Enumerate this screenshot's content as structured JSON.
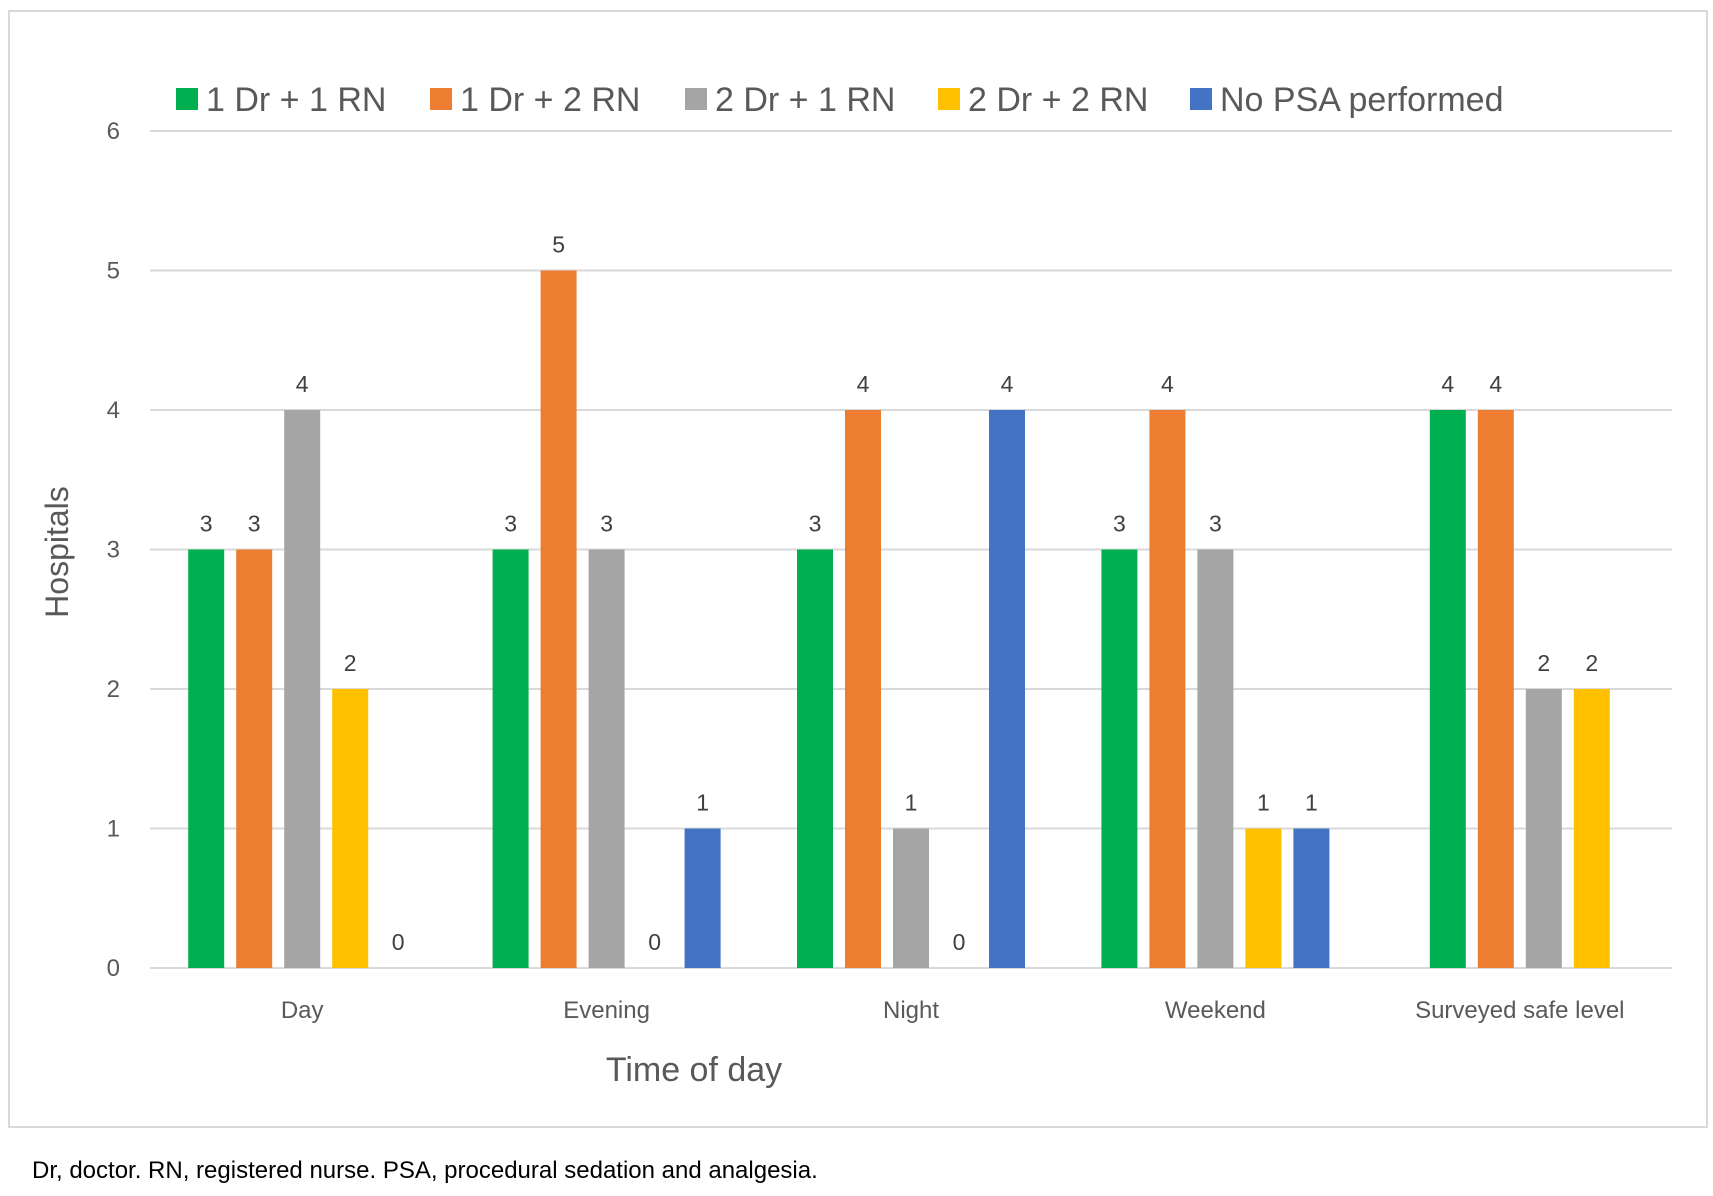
{
  "chart_data": {
    "type": "bar",
    "title": "",
    "xlabel": "Time of day",
    "ylabel": "Hospitals",
    "ylim": [
      0,
      6
    ],
    "yticks": [
      "0",
      "1",
      "2",
      "3",
      "4",
      "5",
      "6"
    ],
    "grid": true,
    "legend_position": "top",
    "categories": [
      "Day",
      "Evening",
      "Night",
      "Weekend",
      "Surveyed safe level"
    ],
    "series": [
      {
        "name": "1 Dr + 1 RN",
        "color": "#00b050",
        "values": [
          3,
          3,
          3,
          3,
          4
        ]
      },
      {
        "name": "1 Dr + 2 RN",
        "color": "#ed7d31",
        "values": [
          3,
          5,
          4,
          4,
          4
        ]
      },
      {
        "name": "2 Dr + 1 RN",
        "color": "#a5a5a5",
        "values": [
          4,
          3,
          1,
          3,
          2
        ]
      },
      {
        "name": "2 Dr + 2 RN",
        "color": "#ffc000",
        "values": [
          2,
          0,
          0,
          1,
          2
        ]
      },
      {
        "name": "No PSA performed",
        "color": "#4472c4",
        "values": [
          0,
          1,
          4,
          1,
          null
        ]
      }
    ]
  },
  "footnote": "Dr, doctor. RN, registered nurse. PSA, procedural sedation and analgesia."
}
